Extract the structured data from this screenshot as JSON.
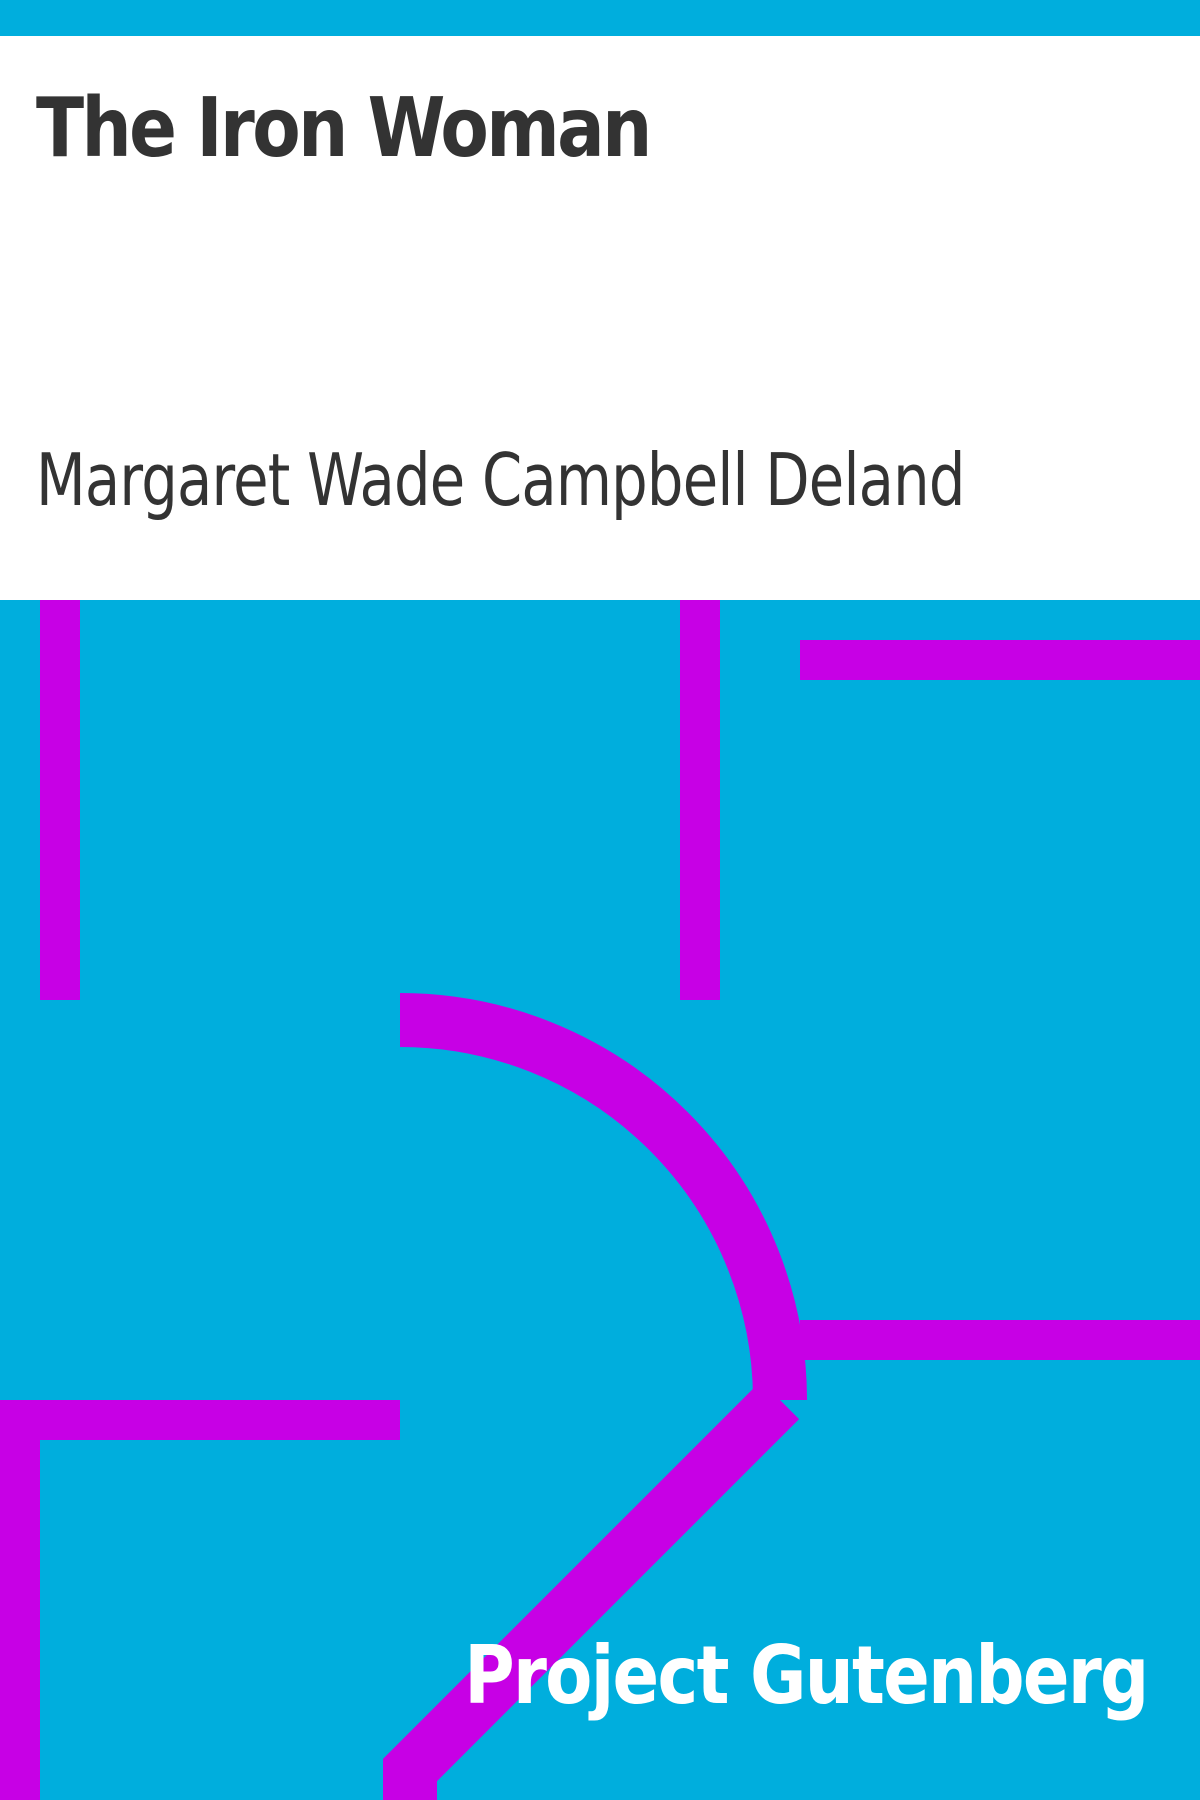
{
  "book": {
    "title": "The Iron Woman",
    "author": "Margaret Wade Campbell Deland"
  },
  "publisher": {
    "name": "Project Gutenberg"
  },
  "colors": {
    "background_blue": "#00aedd",
    "line_magenta": "#c700e5",
    "band_white": "#ffffff",
    "text_dark": "#333333",
    "text_light": "#ffffff"
  }
}
